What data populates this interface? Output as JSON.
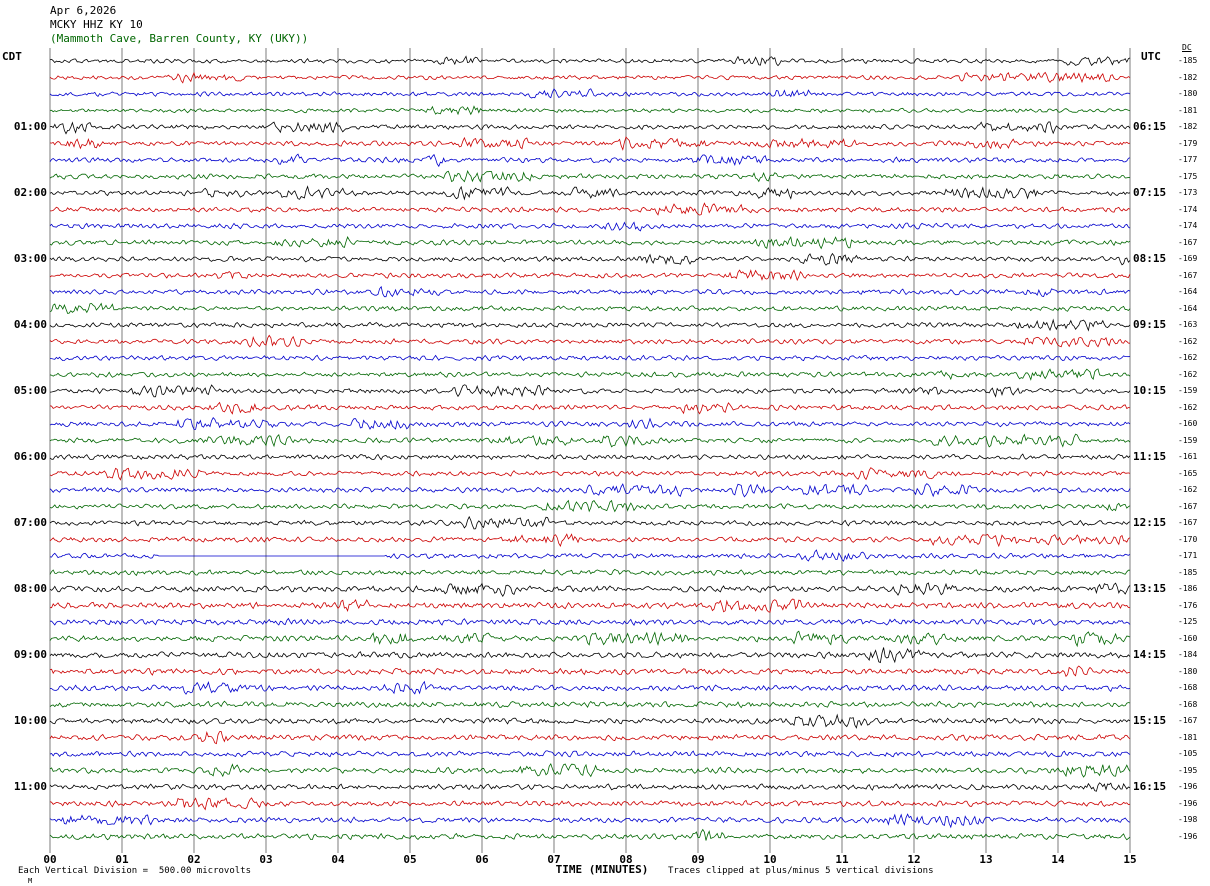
{
  "header": {
    "date": "Apr 6,2026",
    "station": "MCKY HHZ KY 10",
    "location": "(Mammoth Cave, Barren County, KY (UKY))"
  },
  "axes": {
    "left_tz": "CDT",
    "right_tz": "UTC",
    "dc_label": "DC",
    "x_label": "TIME (MINUTES)",
    "x_ticks": [
      "00",
      "01",
      "02",
      "03",
      "04",
      "05",
      "06",
      "07",
      "08",
      "09",
      "10",
      "11",
      "12",
      "13",
      "14",
      "15"
    ]
  },
  "footer": {
    "left": "Each Vertical Division =  500.00 microvolts",
    "right": "Traces clipped at plus/minus 5 vertical divisions",
    "mark": "M"
  },
  "chart_data": {
    "type": "line",
    "title": "MCKY HHZ KY 10 helicorder, Apr 6,2026 (Mammoth Cave, Barren County, KY (UKY))",
    "xlabel": "TIME (MINUTES)",
    "x_range": [
      0,
      15
    ],
    "minutes_per_line": 15,
    "left_time_zone": "CDT",
    "right_time_zone": "UTC",
    "grid": "vertical lines every 1 minute",
    "clip_note": "Traces clipped at plus/minus 5 vertical divisions",
    "vertical_division_microvolts": 500.0,
    "waveform": "continuous seismic background noise; amplitudes below label resolution",
    "trace_colors": {
      "black": "#000000",
      "red": "#cc0000",
      "blue": "#0000cc",
      "green": "#006600"
    },
    "color_cycle": [
      "black",
      "red",
      "blue",
      "green"
    ],
    "rows": [
      {
        "c": "black",
        "dc": -185,
        "amp": 0.85
      },
      {
        "c": "red",
        "dc": -182,
        "amp": 0.85
      },
      {
        "c": "blue",
        "dc": -180,
        "amp": 0.85
      },
      {
        "c": "green",
        "dc": -181,
        "amp": 0.85
      },
      {
        "c": "black",
        "dc": -182,
        "left": "01:00",
        "right": "06:15"
      },
      {
        "c": "red",
        "dc": -179
      },
      {
        "c": "blue",
        "dc": -177
      },
      {
        "c": "green",
        "dc": -175
      },
      {
        "c": "black",
        "dc": -173,
        "left": "02:00",
        "right": "07:15"
      },
      {
        "c": "red",
        "dc": -174
      },
      {
        "c": "blue",
        "dc": -174
      },
      {
        "c": "green",
        "dc": -167
      },
      {
        "c": "black",
        "dc": -169,
        "left": "03:00",
        "right": "08:15"
      },
      {
        "c": "red",
        "dc": -167
      },
      {
        "c": "blue",
        "dc": -164
      },
      {
        "c": "green",
        "dc": -164
      },
      {
        "c": "black",
        "dc": -163,
        "left": "04:00",
        "right": "09:15"
      },
      {
        "c": "red",
        "dc": -162
      },
      {
        "c": "blue",
        "dc": -162
      },
      {
        "c": "green",
        "dc": -162
      },
      {
        "c": "black",
        "dc": -159,
        "left": "05:00",
        "right": "10:15"
      },
      {
        "c": "red",
        "dc": -162
      },
      {
        "c": "blue",
        "dc": -160
      },
      {
        "c": "green",
        "dc": -159
      },
      {
        "c": "black",
        "dc": -161,
        "left": "06:00",
        "right": "11:15"
      },
      {
        "c": "red",
        "dc": -165
      },
      {
        "c": "blue",
        "dc": -162
      },
      {
        "c": "green",
        "dc": -167
      },
      {
        "c": "black",
        "dc": -167,
        "left": "07:00",
        "right": "12:15"
      },
      {
        "c": "red",
        "dc": -170
      },
      {
        "c": "blue",
        "dc": -171,
        "flat": [
          1.5,
          4.65
        ]
      },
      {
        "c": "green",
        "dc": -185
      },
      {
        "c": "black",
        "dc": -186,
        "left": "08:00",
        "right": "13:15",
        "amp": 1.2
      },
      {
        "c": "red",
        "dc": -176,
        "amp": 1.2
      },
      {
        "c": "blue",
        "dc": -125,
        "amp": 1.2
      },
      {
        "c": "green",
        "dc": -160,
        "amp": 1.2
      },
      {
        "c": "black",
        "dc": -184,
        "left": "09:00",
        "right": "14:15",
        "amp": 1.2
      },
      {
        "c": "red",
        "dc": -180,
        "amp": 1.2
      },
      {
        "c": "blue",
        "dc": -168,
        "amp": 1.15
      },
      {
        "c": "green",
        "dc": -168,
        "amp": 1.15
      },
      {
        "c": "black",
        "dc": -167,
        "left": "10:00",
        "right": "15:15",
        "amp": 1.15
      },
      {
        "c": "red",
        "dc": -181,
        "amp": 1.15
      },
      {
        "c": "blue",
        "dc": -105,
        "amp": 1.1
      },
      {
        "c": "green",
        "dc": -195,
        "amp": 1.1
      },
      {
        "c": "black",
        "dc": -196,
        "left": "11:00",
        "right": "16:15",
        "amp": 1.1
      },
      {
        "c": "red",
        "dc": -196,
        "amp": 1.1
      },
      {
        "c": "blue",
        "dc": -198,
        "amp": 1.1
      },
      {
        "c": "green",
        "dc": -196,
        "amp": 1.1
      }
    ]
  }
}
